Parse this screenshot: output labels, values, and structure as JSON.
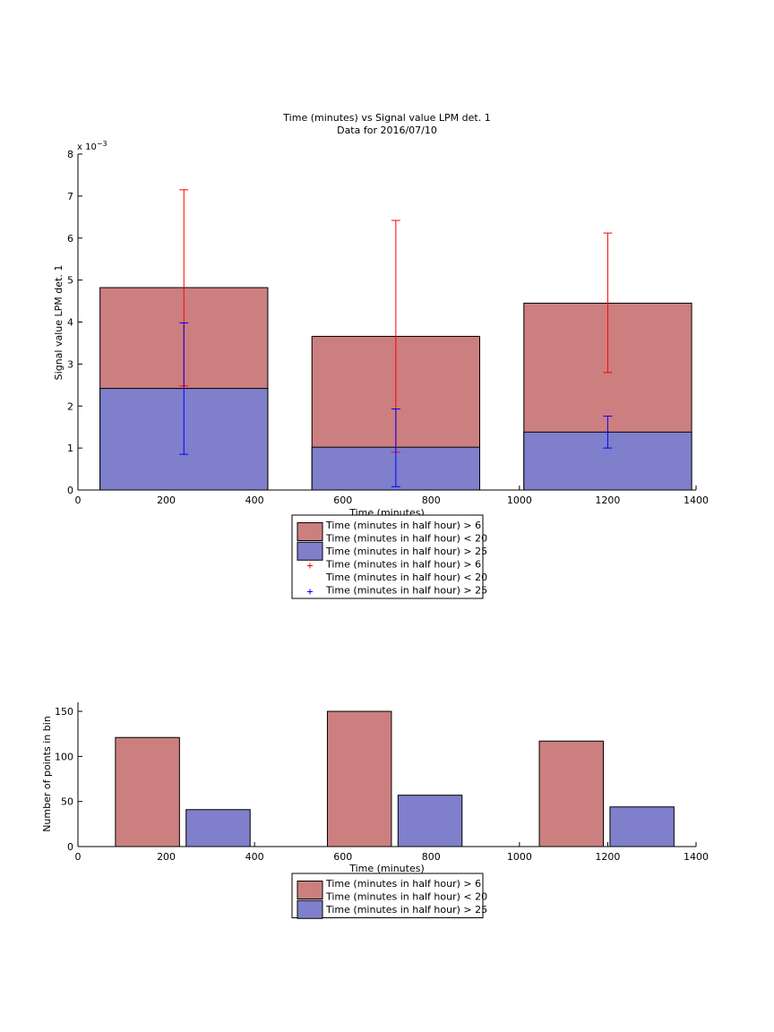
{
  "colors": {
    "red_bar": "#cc7f7f",
    "blue_bar": "#7f7fcc",
    "red_marker": "#ff0000",
    "blue_marker": "#0000ff",
    "axis": "#000000"
  },
  "chart_data": [
    {
      "type": "bar",
      "title": "Time (minutes) vs Signal value LPM det. 1",
      "subtitle": "Data for 2016/07/10",
      "xlabel": "Time (minutes)",
      "ylabel": "Signal value LPM det. 1",
      "y_exponent_label": "x 10",
      "y_exponent_power": "−3",
      "xlim": [
        0,
        1400
      ],
      "ylim": [
        0,
        8
      ],
      "xticks": [
        "0",
        "200",
        "400",
        "600",
        "800",
        "1000",
        "1200",
        "1400"
      ],
      "yticks": [
        "0",
        "1",
        "2",
        "3",
        "4",
        "5",
        "6",
        "7",
        "8"
      ],
      "grid": false,
      "legend_placement": "below",
      "bin_edges": [
        [
          50,
          430
        ],
        [
          530,
          910
        ],
        [
          1010,
          1390
        ]
      ],
      "series": [
        {
          "name": "Time (minutes in half hour) > 6 Time (minutes in half hour) < 20",
          "values": [
            4.82,
            3.66,
            4.45
          ]
        },
        {
          "name": "Time (minutes in half hour) > 25",
          "values": [
            2.42,
            1.02,
            1.38
          ]
        }
      ],
      "error_bars": [
        {
          "name": "Time (minutes in half hour) > 6 Time (minutes in half hour) < 20",
          "x": [
            240,
            720,
            1200
          ],
          "mean": [
            4.82,
            3.66,
            4.45
          ],
          "low": [
            2.48,
            0.9,
            2.8
          ],
          "high": [
            7.15,
            6.42,
            6.12
          ]
        },
        {
          "name": "Time (minutes in half hour) > 25",
          "x": [
            240,
            720,
            1200
          ],
          "mean": [
            2.42,
            1.02,
            1.38
          ],
          "low": [
            0.85,
            0.08,
            1.0
          ],
          "high": [
            3.98,
            1.93,
            1.76
          ]
        }
      ],
      "legend": [
        {
          "kind": "patch",
          "color_key": "red_bar",
          "line1": "Time (minutes in half hour) > 6",
          "line2": "Time (minutes in half hour) < 20"
        },
        {
          "kind": "patch",
          "color_key": "blue_bar",
          "line1": "Time (minutes in half hour) > 25",
          "line2": ""
        },
        {
          "kind": "marker",
          "color_key": "red_marker",
          "line1": "Time (minutes in half hour) > 6",
          "line2": "Time (minutes in half hour) < 20"
        },
        {
          "kind": "marker",
          "color_key": "blue_marker",
          "line1": "Time (minutes in half hour) > 25",
          "line2": ""
        }
      ]
    },
    {
      "type": "bar",
      "title": "",
      "xlabel": "Time (minutes)",
      "ylabel": "Number of points in bin",
      "xlim": [
        0,
        1400
      ],
      "ylim": [
        0,
        160
      ],
      "xticks": [
        "0",
        "200",
        "400",
        "600",
        "800",
        "1000",
        "1200",
        "1400"
      ],
      "yticks": [
        "0",
        "50",
        "100",
        "150"
      ],
      "grid": false,
      "legend_placement": "below",
      "series": [
        {
          "name": "Time (minutes in half hour) > 6 Time (minutes in half hour) < 20",
          "x_ranges": [
            [
              85,
              230
            ],
            [
              565,
              710
            ],
            [
              1045,
              1190
            ]
          ],
          "values": [
            121,
            150,
            117
          ]
        },
        {
          "name": "Time (minutes in half hour) > 25",
          "x_ranges": [
            [
              245,
              390
            ],
            [
              725,
              870
            ],
            [
              1205,
              1350
            ]
          ],
          "values": [
            41,
            57,
            44
          ]
        }
      ],
      "legend": [
        {
          "kind": "patch",
          "color_key": "red_bar",
          "line1": "Time (minutes in half hour) > 6",
          "line2": "Time (minutes in half hour) < 20"
        },
        {
          "kind": "patch",
          "color_key": "blue_bar",
          "line1": "Time (minutes in half hour) > 25",
          "line2": ""
        }
      ]
    }
  ]
}
